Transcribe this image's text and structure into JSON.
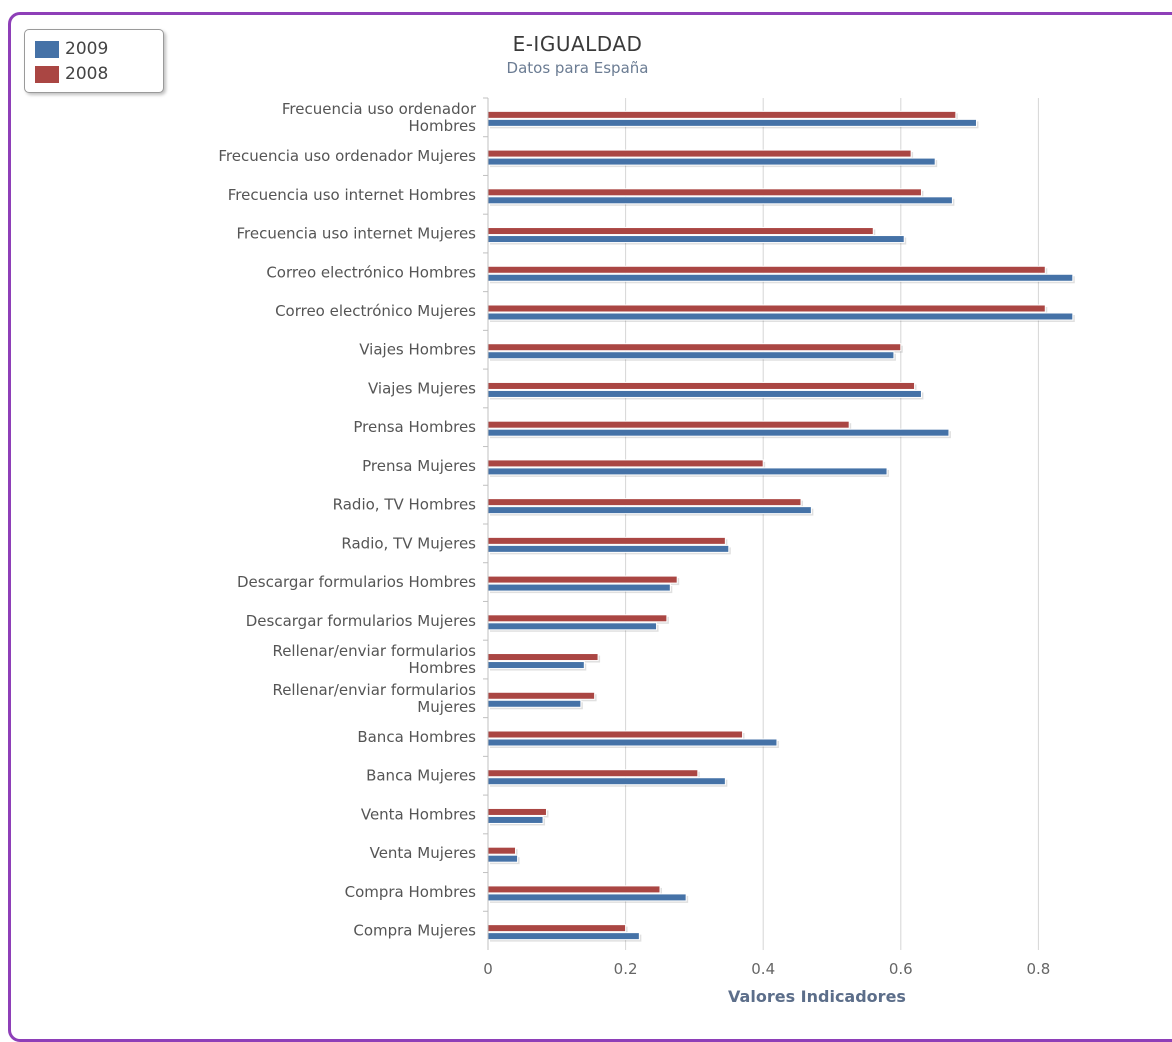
{
  "chart_data": {
    "type": "bar",
    "orientation": "horizontal",
    "title": "E-IGUALDAD",
    "subtitle": "Datos para España",
    "xlabel": "Valores Indicadores",
    "ylabel": "",
    "xlim": [
      0,
      1
    ],
    "xticks": [
      "0",
      "0.2",
      "0.4",
      "0.6",
      "0.8",
      "1"
    ],
    "grid": true,
    "legend_position": "top-left",
    "categories": [
      [
        "Frecuencia uso ordenador",
        "Hombres"
      ],
      [
        "Frecuencia uso ordenador Mujeres"
      ],
      [
        "Frecuencia uso internet Hombres"
      ],
      [
        "Frecuencia uso internet Mujeres"
      ],
      [
        "Correo electrónico Hombres"
      ],
      [
        "Correo electrónico Mujeres"
      ],
      [
        "Viajes Hombres"
      ],
      [
        "Viajes Mujeres"
      ],
      [
        "Prensa Hombres"
      ],
      [
        "Prensa Mujeres"
      ],
      [
        "Radio, TV Hombres"
      ],
      [
        "Radio, TV Mujeres"
      ],
      [
        "Descargar formularios Hombres"
      ],
      [
        "Descargar formularios Mujeres"
      ],
      [
        "Rellenar/enviar formularios",
        "Hombres"
      ],
      [
        "Rellenar/enviar formularios",
        "Mujeres"
      ],
      [
        "Banca Hombres"
      ],
      [
        "Banca Mujeres"
      ],
      [
        "Venta Hombres"
      ],
      [
        "Venta Mujeres"
      ],
      [
        "Compra Hombres"
      ],
      [
        "Compra Mujeres"
      ]
    ],
    "series": [
      {
        "name": "2009",
        "color": "#4572a7",
        "values": [
          0.71,
          0.65,
          0.675,
          0.605,
          0.85,
          0.85,
          0.59,
          0.63,
          0.67,
          0.58,
          0.47,
          0.35,
          0.265,
          0.245,
          0.14,
          0.135,
          0.42,
          0.345,
          0.08,
          0.043,
          0.288,
          0.22
        ]
      },
      {
        "name": "2008",
        "color": "#aa4643",
        "values": [
          0.68,
          0.615,
          0.63,
          0.56,
          0.81,
          0.81,
          0.6,
          0.62,
          0.525,
          0.4,
          0.455,
          0.345,
          0.275,
          0.26,
          0.16,
          0.155,
          0.37,
          0.305,
          0.085,
          0.04,
          0.25,
          0.2
        ]
      }
    ]
  }
}
